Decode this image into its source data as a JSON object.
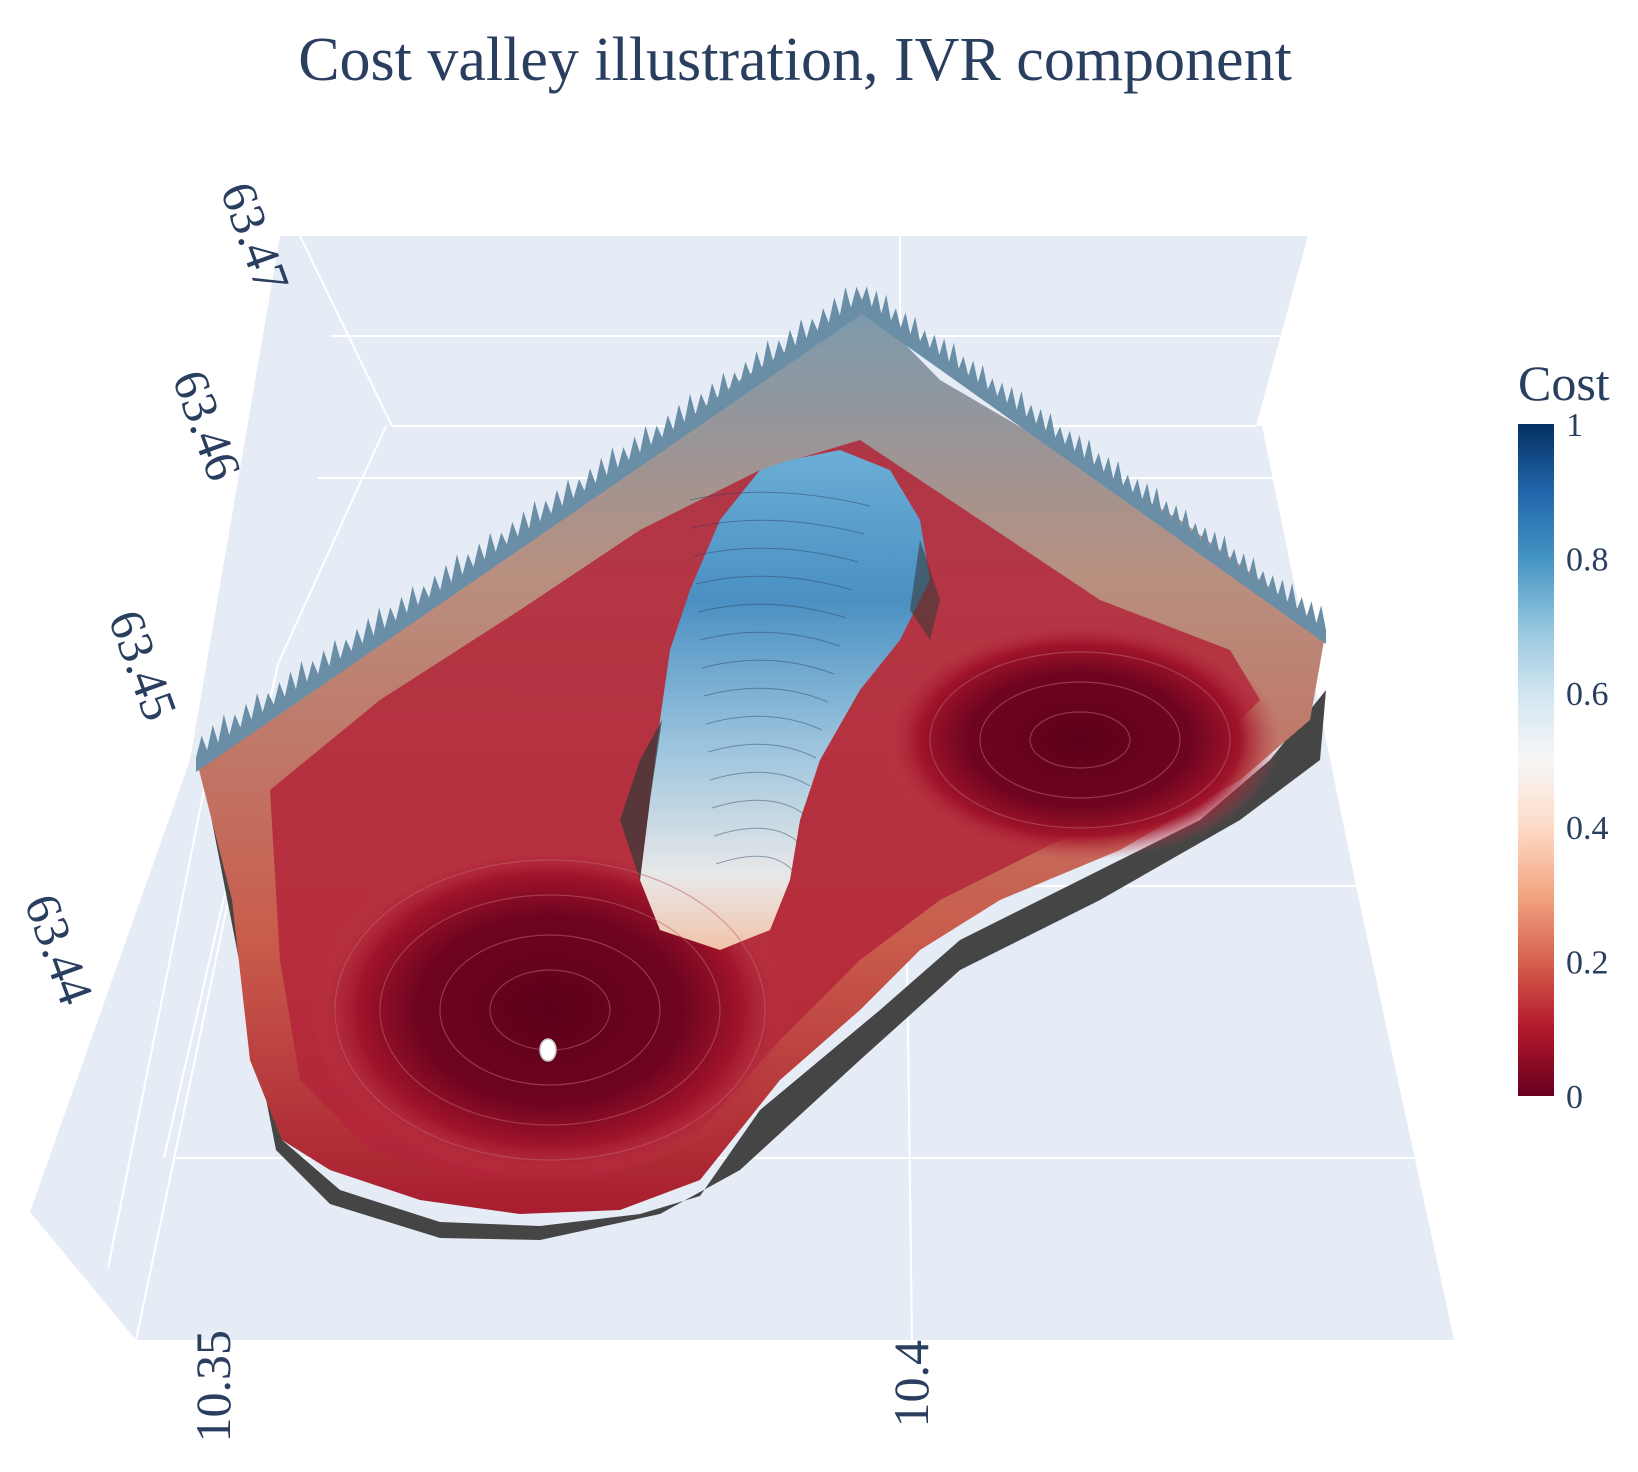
{
  "chart_data": {
    "type": "surface",
    "title": "Cost valley illustration, IVR component",
    "x_axis": {
      "label": "",
      "ticks": [
        "10.35",
        "10.4"
      ]
    },
    "y_axis": {
      "label": "",
      "ticks": [
        "63.44",
        "63.45",
        "63.46",
        "63.47"
      ]
    },
    "z_axis": {
      "label": "",
      "ticks": []
    },
    "colorbar": {
      "title": "Cost",
      "range": [
        0,
        1
      ],
      "ticks": [
        "0",
        "0.2",
        "0.4",
        "0.6",
        "0.8",
        "1"
      ],
      "colorscale": "RdBu",
      "colors": [
        "#67001f",
        "#b2182b",
        "#d6604d",
        "#f4a582",
        "#fddbc7",
        "#f7f7f7",
        "#d1e5f0",
        "#92c5de",
        "#4393c3",
        "#2166ac",
        "#053061"
      ]
    },
    "scene_background": "#e5ecf6",
    "grid_color": "#ffffff",
    "contour_lines": true,
    "features": {
      "valleys": 2,
      "central_ridge_peak_cost": 0.7,
      "rim_cost": 0.65,
      "valley_min_cost": 0.0,
      "optimum_marker": true
    }
  }
}
